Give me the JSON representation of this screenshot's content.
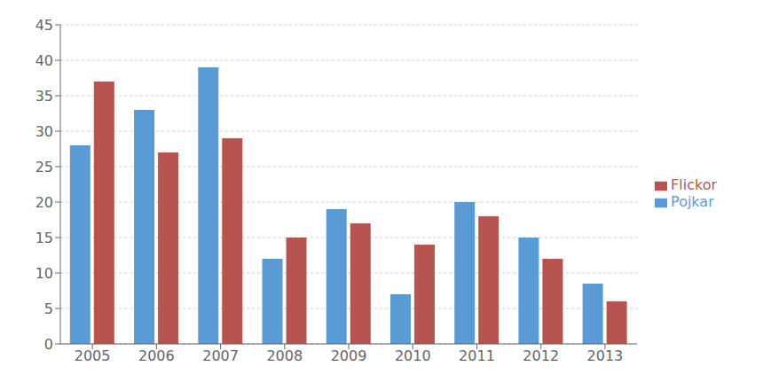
{
  "chart_data": {
    "type": "bar",
    "categories": [
      "2005",
      "2006",
      "2007",
      "2008",
      "2009",
      "2010",
      "2011",
      "2012",
      "2013"
    ],
    "series": [
      {
        "name": "Pojkar",
        "color": "#5B9BD5",
        "values": [
          28,
          33,
          39,
          12,
          19,
          7,
          20,
          15,
          8.5
        ]
      },
      {
        "name": "Flickor",
        "color": "#B85450",
        "values": [
          37,
          27,
          29,
          15,
          17,
          14,
          18,
          12,
          6
        ]
      }
    ],
    "ylim": [
      0,
      45
    ],
    "yticks": [
      0,
      5,
      10,
      15,
      20,
      25,
      30,
      35,
      40,
      45
    ],
    "grid": true,
    "legend": "right"
  }
}
